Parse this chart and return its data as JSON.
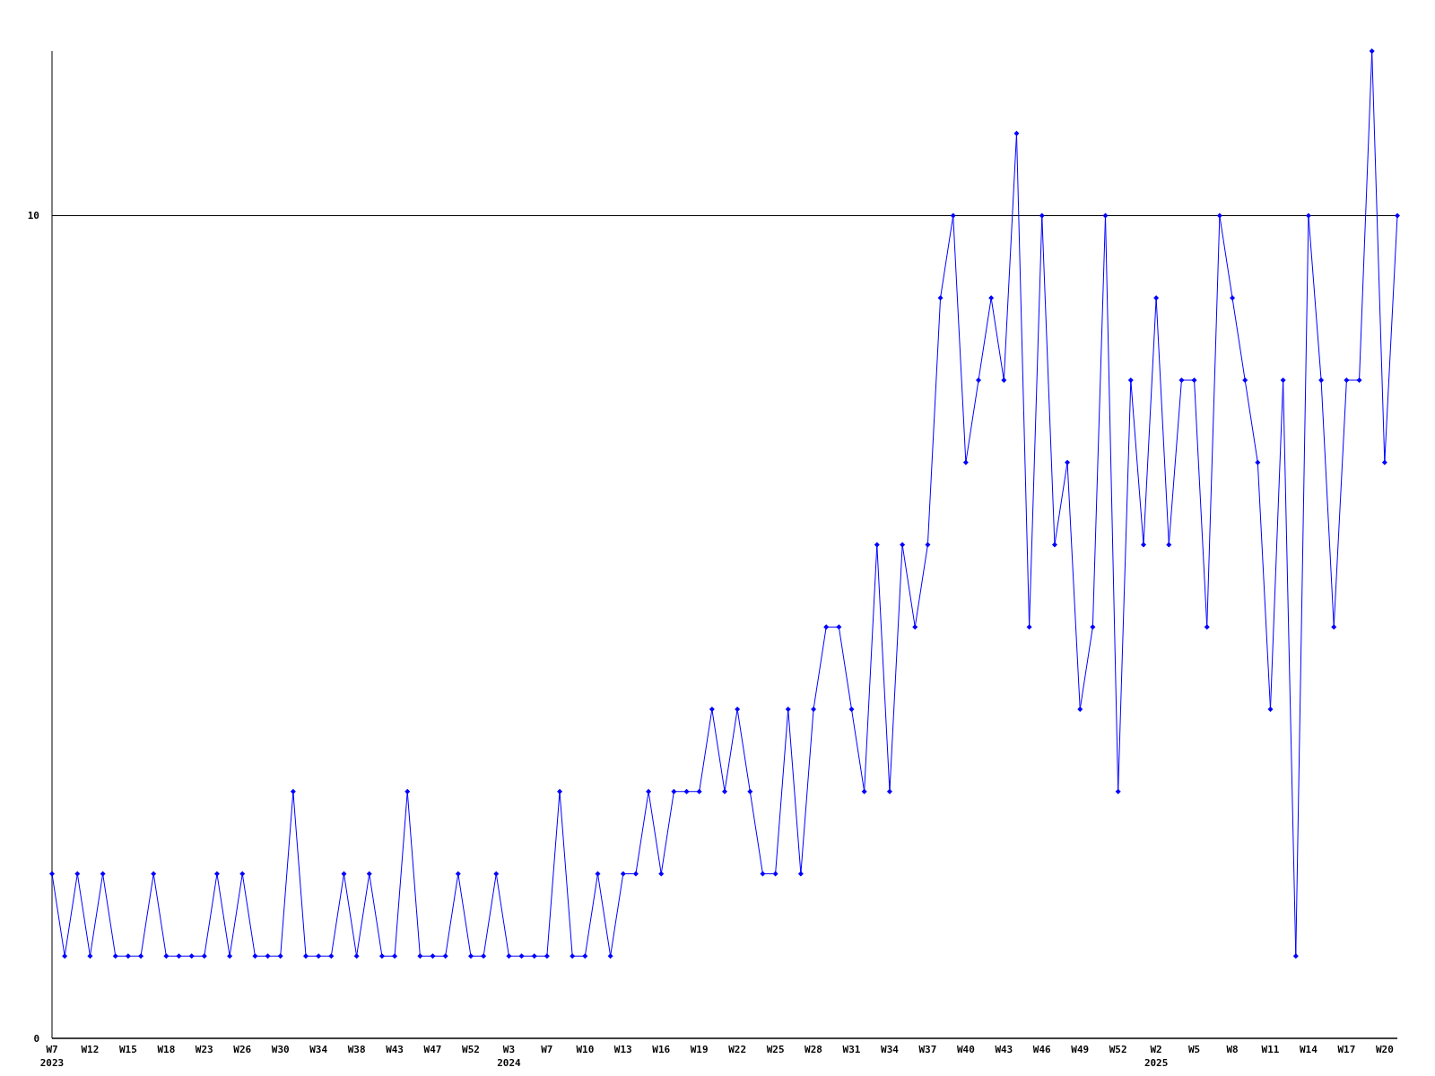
{
  "chart_data": {
    "type": "line",
    "categories": [
      "W7",
      null,
      null,
      "W12",
      null,
      null,
      "W15",
      null,
      null,
      "W18",
      null,
      null,
      "W23",
      null,
      null,
      "W26",
      null,
      null,
      "W30",
      null,
      null,
      "W34",
      null,
      null,
      "W38",
      null,
      null,
      "W43",
      null,
      null,
      "W47",
      null,
      null,
      "W52",
      null,
      null,
      "W3",
      null,
      null,
      "W7",
      null,
      null,
      "W10",
      null,
      null,
      "W13",
      null,
      null,
      "W16",
      null,
      null,
      "W19",
      null,
      null,
      "W22",
      null,
      null,
      "W25",
      null,
      null,
      "W28",
      null,
      null,
      "W31",
      null,
      null,
      "W34",
      null,
      null,
      "W37",
      null,
      null,
      "W40",
      null,
      null,
      "W43",
      null,
      null,
      "W46",
      null,
      null,
      "W49",
      null,
      null,
      "W52",
      null,
      null,
      "W2",
      null,
      null,
      "W5",
      null,
      null,
      "W8",
      null,
      null,
      "W11",
      null,
      null,
      "W14",
      null,
      null,
      "W17",
      null,
      null,
      "W20",
      null
    ],
    "series": [
      {
        "color": "#0000ff",
        "values": [
          2,
          1,
          2,
          1,
          2,
          1,
          1,
          1,
          2,
          1,
          1,
          1,
          1,
          2,
          1,
          2,
          1,
          1,
          1,
          3,
          1,
          1,
          1,
          2,
          1,
          2,
          1,
          1,
          3,
          1,
          1,
          1,
          2,
          1,
          1,
          2,
          1,
          1,
          1,
          1,
          3,
          1,
          1,
          2,
          1,
          2,
          2,
          3,
          2,
          3,
          3,
          3,
          4,
          3,
          4,
          3,
          2,
          2,
          4,
          2,
          4,
          5,
          5,
          4,
          3,
          6,
          3,
          6,
          5,
          6,
          9,
          10,
          7,
          8,
          9,
          8,
          11,
          5,
          10,
          6,
          7,
          4,
          5,
          10,
          3,
          8,
          6,
          9,
          6,
          8,
          8,
          5,
          10,
          9,
          8,
          7,
          4,
          8,
          1,
          10,
          8,
          5,
          8,
          8,
          12,
          7,
          10
        ]
      }
    ],
    "ylim": [
      0,
      12
    ],
    "yticks": [
      0,
      10
    ],
    "grid": "y",
    "marker": "diamond",
    "line_style": "solid",
    "annotations": [
      "2023",
      "2024",
      "2025"
    ]
  }
}
